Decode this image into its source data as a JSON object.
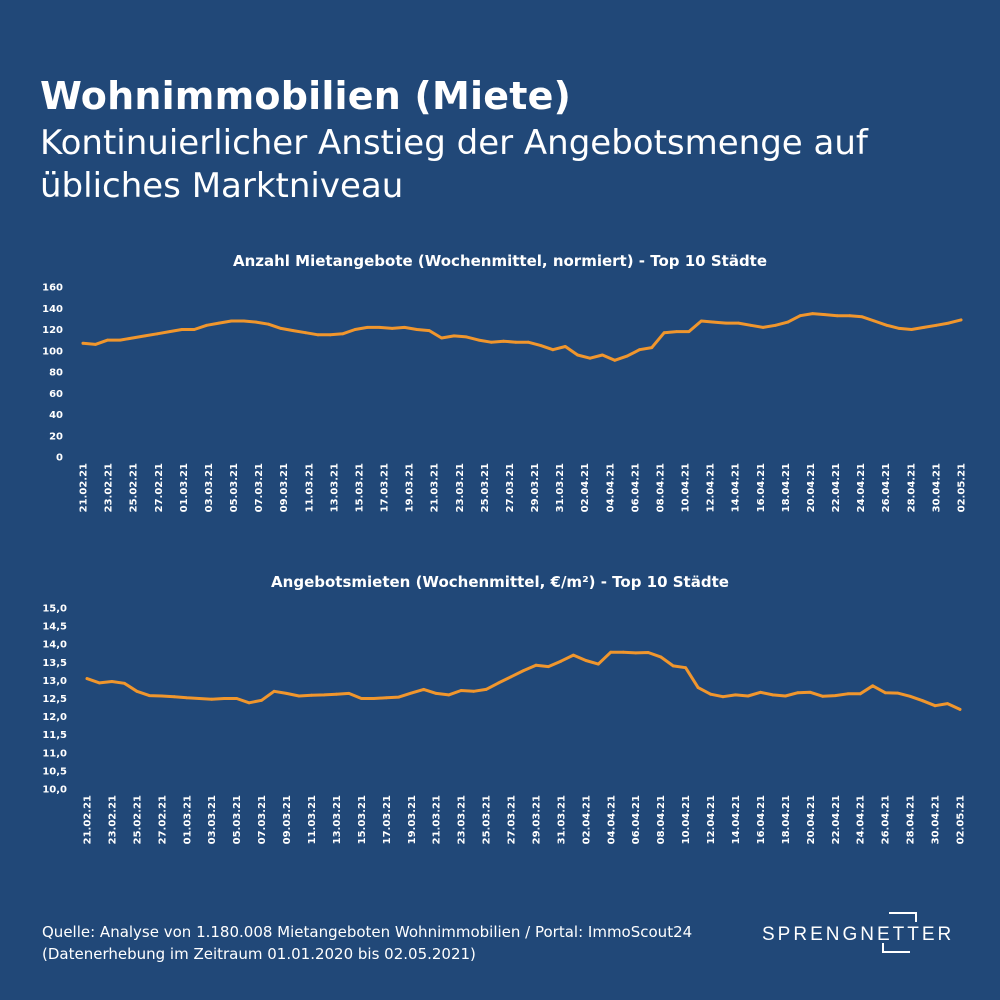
{
  "header": {
    "title": "Wohnimmobilien (Miete)",
    "subtitle": "Kontinuierlicher Anstieg der Angebotsmenge auf übliches Marktniveau"
  },
  "colors": {
    "background": "#214878",
    "line": "#F0962D",
    "text": "#FFFFFF"
  },
  "chart_data": [
    {
      "type": "line",
      "title": "Anzahl Mietangebote (Wochenmittel, normiert) - Top 10 Städte",
      "xlabel": "",
      "ylabel": "",
      "ylim": [
        0,
        160
      ],
      "yticks": [
        "0",
        "20",
        "40",
        "60",
        "80",
        "100",
        "120",
        "140",
        "160"
      ],
      "grid": false,
      "legend": "none",
      "x_tick_labels": [
        "21.02.21",
        "23.02.21",
        "25.02.21",
        "27.02.21",
        "01.03.21",
        "03.03.21",
        "05.03.21",
        "07.03.21",
        "09.03.21",
        "11.03.21",
        "13.03.21",
        "15.03.21",
        "17.03.21",
        "19.03.21",
        "21.03.21",
        "23.03.21",
        "25.03.21",
        "27.03.21",
        "29.03.21",
        "31.03.21",
        "02.04.21",
        "04.04.21",
        "06.04.21",
        "08.04.21",
        "10.04.21",
        "12.04.21",
        "14.04.21",
        "16.04.21",
        "18.04.21",
        "20.04.21",
        "22.04.21",
        "24.04.21",
        "26.04.21",
        "28.04.21",
        "30.04.21",
        "02.05.21"
      ],
      "series": [
        {
          "values": [
            107,
            106,
            110,
            110,
            112,
            114,
            116,
            118,
            120,
            120,
            124,
            126,
            128,
            128,
            127,
            125,
            121,
            119,
            117,
            115,
            115,
            116,
            120,
            122,
            122,
            121,
            122,
            120,
            119,
            112,
            114,
            113,
            110,
            108,
            109,
            108,
            108,
            105,
            101,
            104,
            96,
            93,
            96,
            91,
            95,
            101,
            103,
            117,
            118,
            118,
            128,
            127,
            126,
            126,
            124,
            122,
            124,
            127,
            133,
            135,
            134,
            133,
            133,
            132,
            128,
            124,
            121,
            120,
            122,
            124,
            126,
            129
          ]
        }
      ]
    },
    {
      "type": "line",
      "title": "Angebotsmieten (Wochenmittel, €/m²) - Top 10 Städte",
      "xlabel": "",
      "ylabel": "",
      "ylim": [
        10.0,
        15.0
      ],
      "yticks": [
        "10,0",
        "10,5",
        "11,0",
        "11,5",
        "12,0",
        "12,5",
        "13,0",
        "13,5",
        "14,0",
        "14,5",
        "15,0"
      ],
      "grid": false,
      "legend": "none",
      "x_tick_labels": [
        "21.02.21",
        "23.02.21",
        "25.02.21",
        "27.02.21",
        "01.03.21",
        "03.03.21",
        "05.03.21",
        "07.03.21",
        "09.03.21",
        "11.03.21",
        "13.03.21",
        "15.03.21",
        "17.03.21",
        "19.03.21",
        "21.03.21",
        "23.03.21",
        "25.03.21",
        "27.03.21",
        "29.03.21",
        "31.03.21",
        "02.04.21",
        "04.04.21",
        "06.04.21",
        "08.04.21",
        "10.04.21",
        "12.04.21",
        "14.04.21",
        "16.04.21",
        "18.04.21",
        "20.04.21",
        "22.04.21",
        "24.04.21",
        "26.04.21",
        "28.04.21",
        "30.04.21",
        "02.05.21"
      ],
      "series": [
        {
          "values": [
            13.05,
            12.93,
            12.97,
            12.92,
            12.7,
            12.58,
            12.57,
            12.55,
            12.52,
            12.5,
            12.48,
            12.5,
            12.5,
            12.38,
            12.45,
            12.7,
            12.64,
            12.57,
            12.59,
            12.6,
            12.62,
            12.64,
            12.5,
            12.5,
            12.52,
            12.54,
            12.65,
            12.75,
            12.64,
            12.6,
            12.72,
            12.7,
            12.75,
            12.93,
            13.1,
            13.27,
            13.42,
            13.38,
            13.53,
            13.7,
            13.55,
            13.45,
            13.78,
            13.78,
            13.76,
            13.77,
            13.65,
            13.4,
            13.35,
            12.8,
            12.62,
            12.55,
            12.6,
            12.57,
            12.67,
            12.6,
            12.57,
            12.66,
            12.67,
            12.56,
            12.58,
            12.63,
            12.63,
            12.85,
            12.66,
            12.65,
            12.56,
            12.44,
            12.3,
            12.36,
            12.2
          ]
        }
      ]
    }
  ],
  "footer": {
    "line1": "Quelle: Analyse von 1.180.008 Mietangeboten Wohnimmobilien / Portal: ImmoScout24",
    "line2": "(Datenerhebung im Zeitraum 01.01.2020 bis  02.05.2021)"
  },
  "logo": {
    "text": "SPRENGNETTER"
  }
}
